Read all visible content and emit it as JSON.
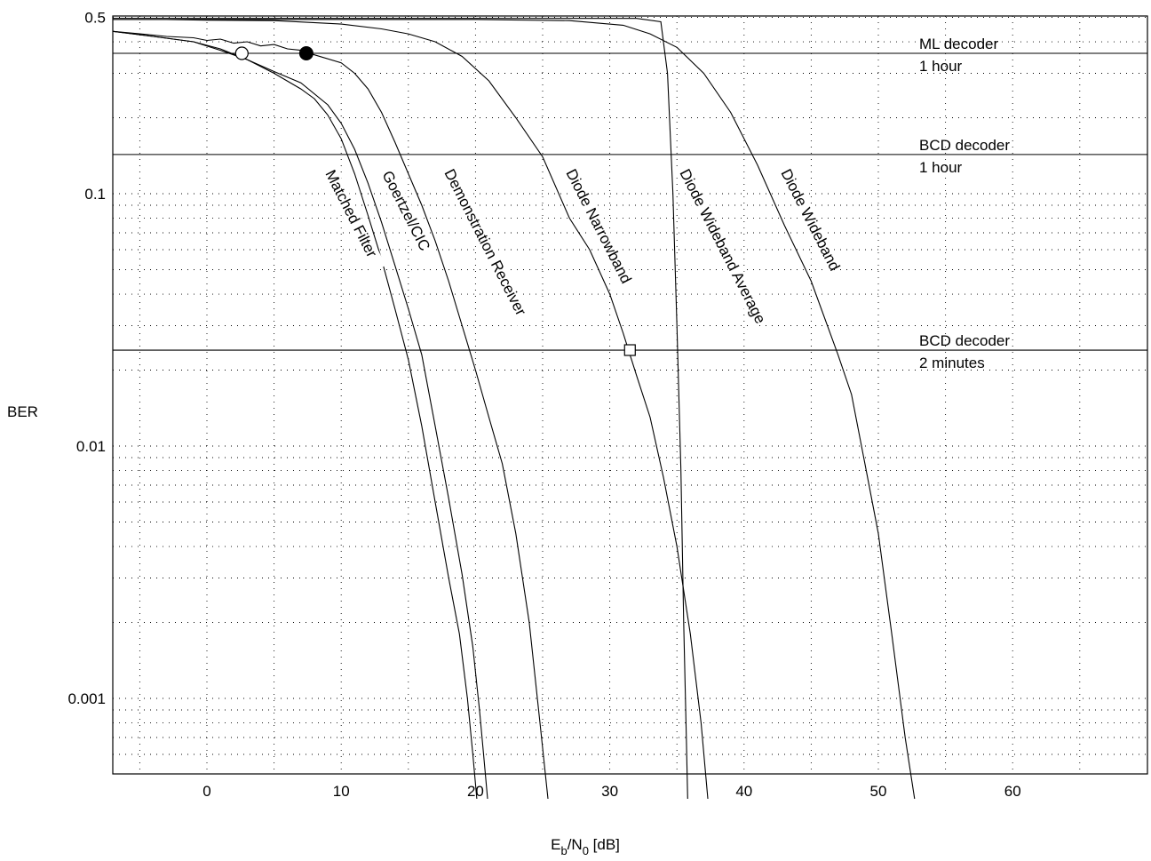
{
  "chart_data": {
    "type": "line",
    "xlabel_main": "E",
    "xlabel_sub_b": "b",
    "xlabel_mid": "/N",
    "xlabel_sub_0": "0",
    "xlabel_unit": " [dB]",
    "ylabel": "BER",
    "xlim": [
      -7,
      70
    ],
    "ylim": [
      0.0004,
      0.5
    ],
    "yscale": "log",
    "grid": true,
    "x_ticks": [
      0,
      10,
      20,
      30,
      40,
      50,
      60
    ],
    "x_tick_labels": [
      "0",
      "10",
      "20",
      "30",
      "40",
      "50",
      "60"
    ],
    "y_ticks": [
      0.5,
      0.1,
      0.01,
      0.001
    ],
    "y_tick_labels": [
      "0.5",
      "0.1",
      "0.01",
      "0.001"
    ],
    "series": [
      {
        "name": "Matched Filter",
        "points": [
          [
            -7,
            0.44
          ],
          [
            -4,
            0.42
          ],
          [
            -1,
            0.4
          ],
          [
            1,
            0.375
          ],
          [
            3,
            0.34
          ],
          [
            5,
            0.3
          ],
          [
            7,
            0.26
          ],
          [
            8,
            0.238
          ],
          [
            9,
            0.205
          ],
          [
            10,
            0.165
          ],
          [
            11,
            0.12
          ],
          [
            12,
            0.082
          ],
          [
            13,
            0.055
          ],
          [
            14,
            0.035
          ],
          [
            15,
            0.022
          ],
          [
            16,
            0.012
          ],
          [
            17,
            0.006
          ],
          [
            18,
            0.003
          ],
          [
            18.8,
            0.0018
          ],
          [
            19.4,
            0.001
          ],
          [
            19.8,
            0.0006
          ],
          [
            20.1,
            0.0004
          ]
        ]
      },
      {
        "name": "Goertzel/CIC",
        "points": [
          [
            -7,
            0.44
          ],
          [
            -4,
            0.42
          ],
          [
            -1,
            0.4
          ],
          [
            1,
            0.37
          ],
          [
            3,
            0.34
          ],
          [
            5,
            0.305
          ],
          [
            7,
            0.275
          ],
          [
            9,
            0.225
          ],
          [
            10,
            0.19
          ],
          [
            11,
            0.15
          ],
          [
            12,
            0.11
          ],
          [
            13,
            0.077
          ],
          [
            14,
            0.052
          ],
          [
            15,
            0.035
          ],
          [
            16,
            0.023
          ],
          [
            17,
            0.012
          ],
          [
            18,
            0.0062
          ],
          [
            19,
            0.0031
          ],
          [
            19.8,
            0.0016
          ],
          [
            20.3,
            0.0009
          ],
          [
            20.6,
            0.0006
          ],
          [
            20.9,
            0.0004
          ]
        ]
      },
      {
        "name": "Demonstration Receiver",
        "points": [
          [
            -7,
            0.44
          ],
          [
            -5,
            0.43
          ],
          [
            -3,
            0.42
          ],
          [
            -1,
            0.415
          ],
          [
            0,
            0.405
          ],
          [
            1,
            0.41
          ],
          [
            2,
            0.395
          ],
          [
            3,
            0.4
          ],
          [
            4,
            0.385
          ],
          [
            5,
            0.39
          ],
          [
            6,
            0.375
          ],
          [
            7,
            0.37
          ],
          [
            8,
            0.355
          ],
          [
            10,
            0.33
          ],
          [
            11,
            0.3
          ],
          [
            12,
            0.26
          ],
          [
            13,
            0.21
          ],
          [
            14,
            0.16
          ],
          [
            15,
            0.12
          ],
          [
            16,
            0.09
          ],
          [
            17,
            0.065
          ],
          [
            18,
            0.045
          ],
          [
            19,
            0.03
          ],
          [
            20,
            0.02
          ],
          [
            21,
            0.013
          ],
          [
            22,
            0.0085
          ],
          [
            23,
            0.0045
          ],
          [
            24,
            0.002
          ],
          [
            24.8,
            0.0008
          ],
          [
            25.4,
            0.0004
          ]
        ]
      },
      {
        "name": "Diode Narrowband",
        "points": [
          [
            -7,
            0.49
          ],
          [
            -3,
            0.49
          ],
          [
            0,
            0.487
          ],
          [
            5,
            0.485
          ],
          [
            10,
            0.47
          ],
          [
            13,
            0.45
          ],
          [
            15,
            0.43
          ],
          [
            17,
            0.4
          ],
          [
            19,
            0.35
          ],
          [
            21,
            0.28
          ],
          [
            23,
            0.2
          ],
          [
            25,
            0.14
          ],
          [
            27,
            0.08
          ],
          [
            28.5,
            0.06
          ],
          [
            30,
            0.04
          ],
          [
            31,
            0.028
          ],
          [
            32,
            0.019
          ],
          [
            33,
            0.013
          ],
          [
            34,
            0.0075
          ],
          [
            35,
            0.004
          ],
          [
            36,
            0.0018
          ],
          [
            36.8,
            0.0008
          ],
          [
            37.3,
            0.0004
          ]
        ]
      },
      {
        "name": "Diode Wideband Average",
        "points": [
          [
            -7,
            0.495
          ],
          [
            10,
            0.495
          ],
          [
            25,
            0.495
          ],
          [
            32,
            0.495
          ],
          [
            33.8,
            0.48
          ],
          [
            34.3,
            0.3
          ],
          [
            34.7,
            0.1
          ],
          [
            35.0,
            0.03
          ],
          [
            35.3,
            0.008
          ],
          [
            35.5,
            0.002
          ],
          [
            35.7,
            0.0007
          ],
          [
            35.8,
            0.0004
          ]
        ]
      },
      {
        "name": "Diode Wideband",
        "points": [
          [
            -7,
            0.49
          ],
          [
            10,
            0.49
          ],
          [
            20,
            0.49
          ],
          [
            27,
            0.485
          ],
          [
            31,
            0.465
          ],
          [
            33,
            0.43
          ],
          [
            35,
            0.38
          ],
          [
            37,
            0.3
          ],
          [
            39,
            0.21
          ],
          [
            41,
            0.13
          ],
          [
            43,
            0.075
          ],
          [
            45,
            0.045
          ],
          [
            47,
            0.023
          ],
          [
            48,
            0.016
          ],
          [
            49,
            0.0085
          ],
          [
            50,
            0.0045
          ],
          [
            51,
            0.0018
          ],
          [
            52,
            0.0007
          ],
          [
            52.7,
            0.0004
          ]
        ]
      }
    ],
    "reference_lines": [
      {
        "y": 0.36,
        "line1": "ML decoder",
        "line2": "1 hour"
      },
      {
        "y": 0.143,
        "line1": "BCD decoder",
        "line2": "1 hour"
      },
      {
        "y": 0.024,
        "line1": "BCD decoder",
        "line2": "2 minutes"
      }
    ],
    "markers": [
      {
        "shape": "open-circle",
        "x": 2.6,
        "y": 0.36
      },
      {
        "shape": "filled-circle",
        "x": 7.4,
        "y": 0.36
      },
      {
        "shape": "open-square",
        "x": 31.5,
        "y": 0.024
      }
    ]
  }
}
